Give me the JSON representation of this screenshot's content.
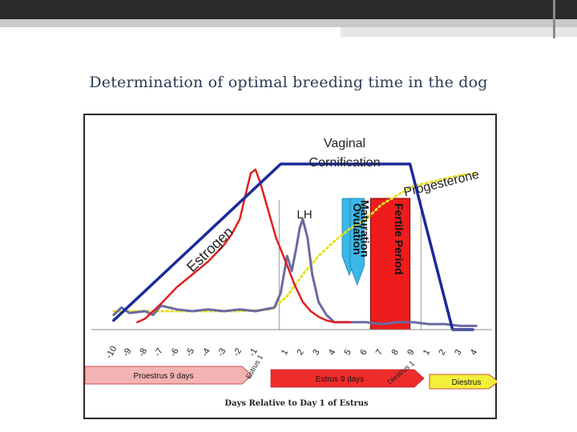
{
  "slide": {
    "title": "Determination of optimal breeding time in the dog"
  },
  "chart_data": {
    "type": "line",
    "title": "",
    "xlabel": "Days Relative to Day 1 of Estrus",
    "ticks": [
      "-10",
      "-9",
      "-8",
      "-7",
      "-6",
      "-5",
      "-4",
      "-3",
      "-2",
      "-1",
      "1",
      "2",
      "3",
      "4",
      "5",
      "6",
      "7",
      "8",
      "9",
      "1",
      "2",
      "3",
      "4"
    ],
    "tick_note": "Tick labels as printed: -10 to -1 (proestrus), 1 to 9 (estrus), then 1 to 4 (diestrus); plotted on one continuous axis.",
    "xlim": [
      -10.5,
      13.5
    ],
    "ylim": [
      0,
      100
    ],
    "series": [
      {
        "name": "Estrogen",
        "color": "#e02020",
        "x": [
          -8.5,
          -8,
          -7,
          -6,
          -5,
          -4,
          -3,
          -2.5,
          -2,
          -1.5,
          -1.3,
          -1,
          -0.7,
          -0.3,
          0.3,
          1,
          1.5,
          2,
          2.5,
          3,
          3.5,
          4,
          5
        ],
        "y": [
          4,
          6,
          14,
          23,
          30,
          37,
          46,
          52,
          60,
          78,
          85,
          87,
          80,
          68,
          50,
          35,
          24,
          15,
          10,
          7,
          5,
          4,
          4
        ]
      },
      {
        "name": "LH",
        "color": "#6a6aa0",
        "x": [
          -10,
          -9.5,
          -9,
          -8,
          -7.5,
          -7,
          -6,
          -5,
          -4,
          -3,
          -2,
          -1,
          0.2,
          0.6,
          1,
          1.3,
          1.6,
          1.8,
          2,
          2.3,
          2.6,
          3,
          3.5,
          4,
          5,
          6,
          7,
          8,
          9,
          10,
          11,
          12,
          13
        ],
        "y": [
          8,
          12,
          9,
          10,
          8,
          13,
          11,
          10,
          11,
          10,
          11,
          10,
          12,
          20,
          40,
          32,
          45,
          55,
          60,
          50,
          30,
          15,
          8,
          4,
          4,
          4,
          3,
          4,
          4,
          3,
          3,
          2,
          2
        ]
      },
      {
        "name": "Progesterone",
        "color": "#e8e020",
        "x": [
          -10,
          -8,
          -6,
          -4,
          -2,
          0,
          1,
          2,
          3,
          4,
          5,
          6,
          7,
          8,
          9,
          10,
          11,
          12,
          13
        ],
        "y": [
          10,
          10,
          10,
          10,
          10,
          11,
          18,
          30,
          40,
          48,
          55,
          60,
          68,
          73,
          78,
          80,
          82,
          84,
          85
        ]
      },
      {
        "name": "Vaginal Cornification",
        "color": "#1a2a9a",
        "x": [
          -10,
          0.6,
          8.8,
          11.5,
          12.8
        ],
        "y": [
          5,
          90,
          90,
          0,
          0
        ]
      }
    ],
    "bands": [
      {
        "label": "Maturation",
        "color": "#3ab8e8",
        "x_start": 5.0,
        "x_end": 5.9
      },
      {
        "label": "Ovulation",
        "color": "#3ab8e8",
        "x_start": 4.5,
        "x_end": 5.4
      },
      {
        "label": "Fertile Period",
        "color": "#ee1c1c",
        "x_start": 6.3,
        "x_end": 8.8
      }
    ],
    "phases": [
      {
        "label": "Proestrus 9 days",
        "color": "#f3b3b3"
      },
      {
        "label": "Estrus 9 days",
        "color": "#ef2c2c"
      },
      {
        "label": "Diestrus",
        "color": "#f2ef3a"
      }
    ],
    "phase_markers": [
      "Estrus 1",
      "Diestrus 1"
    ]
  }
}
